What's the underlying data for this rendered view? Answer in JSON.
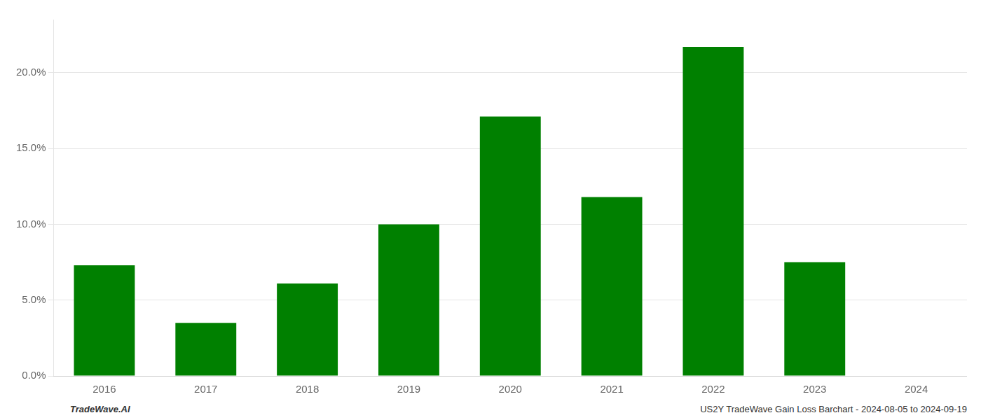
{
  "chart_data": {
    "type": "bar",
    "categories": [
      "2016",
      "2017",
      "2018",
      "2019",
      "2020",
      "2021",
      "2022",
      "2023",
      "2024"
    ],
    "values": [
      7.3,
      3.5,
      6.1,
      10.0,
      17.1,
      11.8,
      21.7,
      7.5,
      0.0
    ],
    "color": "#008000",
    "ylim": [
      0,
      23.5
    ],
    "yticks": [
      {
        "value": 0.0,
        "label": "0.0%"
      },
      {
        "value": 5.0,
        "label": "5.0%"
      },
      {
        "value": 10.0,
        "label": "10.0%"
      },
      {
        "value": 15.0,
        "label": "15.0%"
      },
      {
        "value": 20.0,
        "label": "20.0%"
      }
    ],
    "grid": true,
    "annotations": [
      "TradeWave.AI",
      "US2Y TradeWave Gain Loss Barchart - 2024-08-05 to 2024-09-19"
    ]
  }
}
